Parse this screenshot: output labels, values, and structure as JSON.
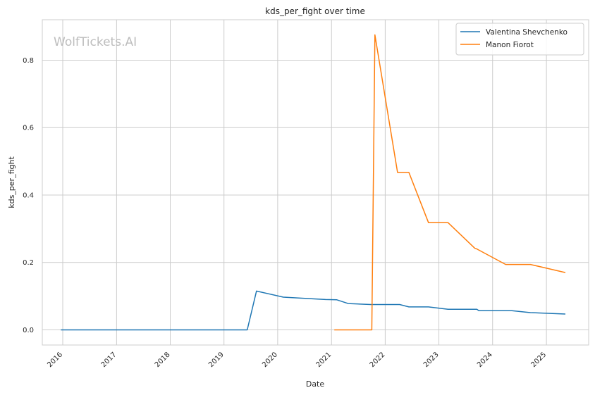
{
  "chart_data": {
    "type": "line",
    "title": "kds_per_fight over time",
    "xlabel": "Date",
    "ylabel": "kds_per_fight",
    "watermark": "WolfTickets.AI",
    "x_ticks": [
      "2016",
      "2017",
      "2018",
      "2019",
      "2020",
      "2021",
      "2022",
      "2023",
      "2024",
      "2025"
    ],
    "y_ticks": [
      "0.0",
      "0.2",
      "0.4",
      "0.6",
      "0.8"
    ],
    "xlim": [
      "2015-08-15",
      "2025-10-15"
    ],
    "ylim": [
      -0.045,
      0.92
    ],
    "grid": true,
    "legend_position": "top-right",
    "series": [
      {
        "name": "Valentina Shevchenko",
        "color": "#1f77b4",
        "points": [
          [
            "2015-12-19",
            0.0
          ],
          [
            "2016-07-09",
            0.0
          ],
          [
            "2017-03-04",
            0.0
          ],
          [
            "2017-09-09",
            0.0
          ],
          [
            "2018-06-09",
            0.0
          ],
          [
            "2018-12-08",
            0.0
          ],
          [
            "2019-06-08",
            0.0
          ],
          [
            "2019-08-10",
            0.115
          ],
          [
            "2020-02-08",
            0.097
          ],
          [
            "2020-06-13",
            0.094
          ],
          [
            "2020-11-21",
            0.09
          ],
          [
            "2021-02-06",
            0.089
          ],
          [
            "2021-04-24",
            0.078
          ],
          [
            "2021-09-25",
            0.075
          ],
          [
            "2022-04-09",
            0.075
          ],
          [
            "2022-06-11",
            0.068
          ],
          [
            "2022-10-22",
            0.068
          ],
          [
            "2023-03-04",
            0.061
          ],
          [
            "2023-09-16",
            0.061
          ],
          [
            "2023-09-30",
            0.057
          ],
          [
            "2024-05-11",
            0.057
          ],
          [
            "2024-09-14",
            0.051
          ],
          [
            "2025-05-10",
            0.047
          ]
        ]
      },
      {
        "name": "Manon Fiorot",
        "color": "#ff7f0e",
        "points": [
          [
            "2021-01-20",
            0.0
          ],
          [
            "2021-10-02",
            0.0
          ],
          [
            "2021-10-23",
            0.875
          ],
          [
            "2022-03-26",
            0.467
          ],
          [
            "2022-06-11",
            0.467
          ],
          [
            "2022-10-22",
            0.318
          ],
          [
            "2023-03-04",
            0.318
          ],
          [
            "2023-09-02",
            0.242
          ],
          [
            "2023-09-16",
            0.24
          ],
          [
            "2024-03-30",
            0.194
          ],
          [
            "2024-09-14",
            0.194
          ],
          [
            "2025-05-10",
            0.17
          ]
        ]
      }
    ]
  }
}
